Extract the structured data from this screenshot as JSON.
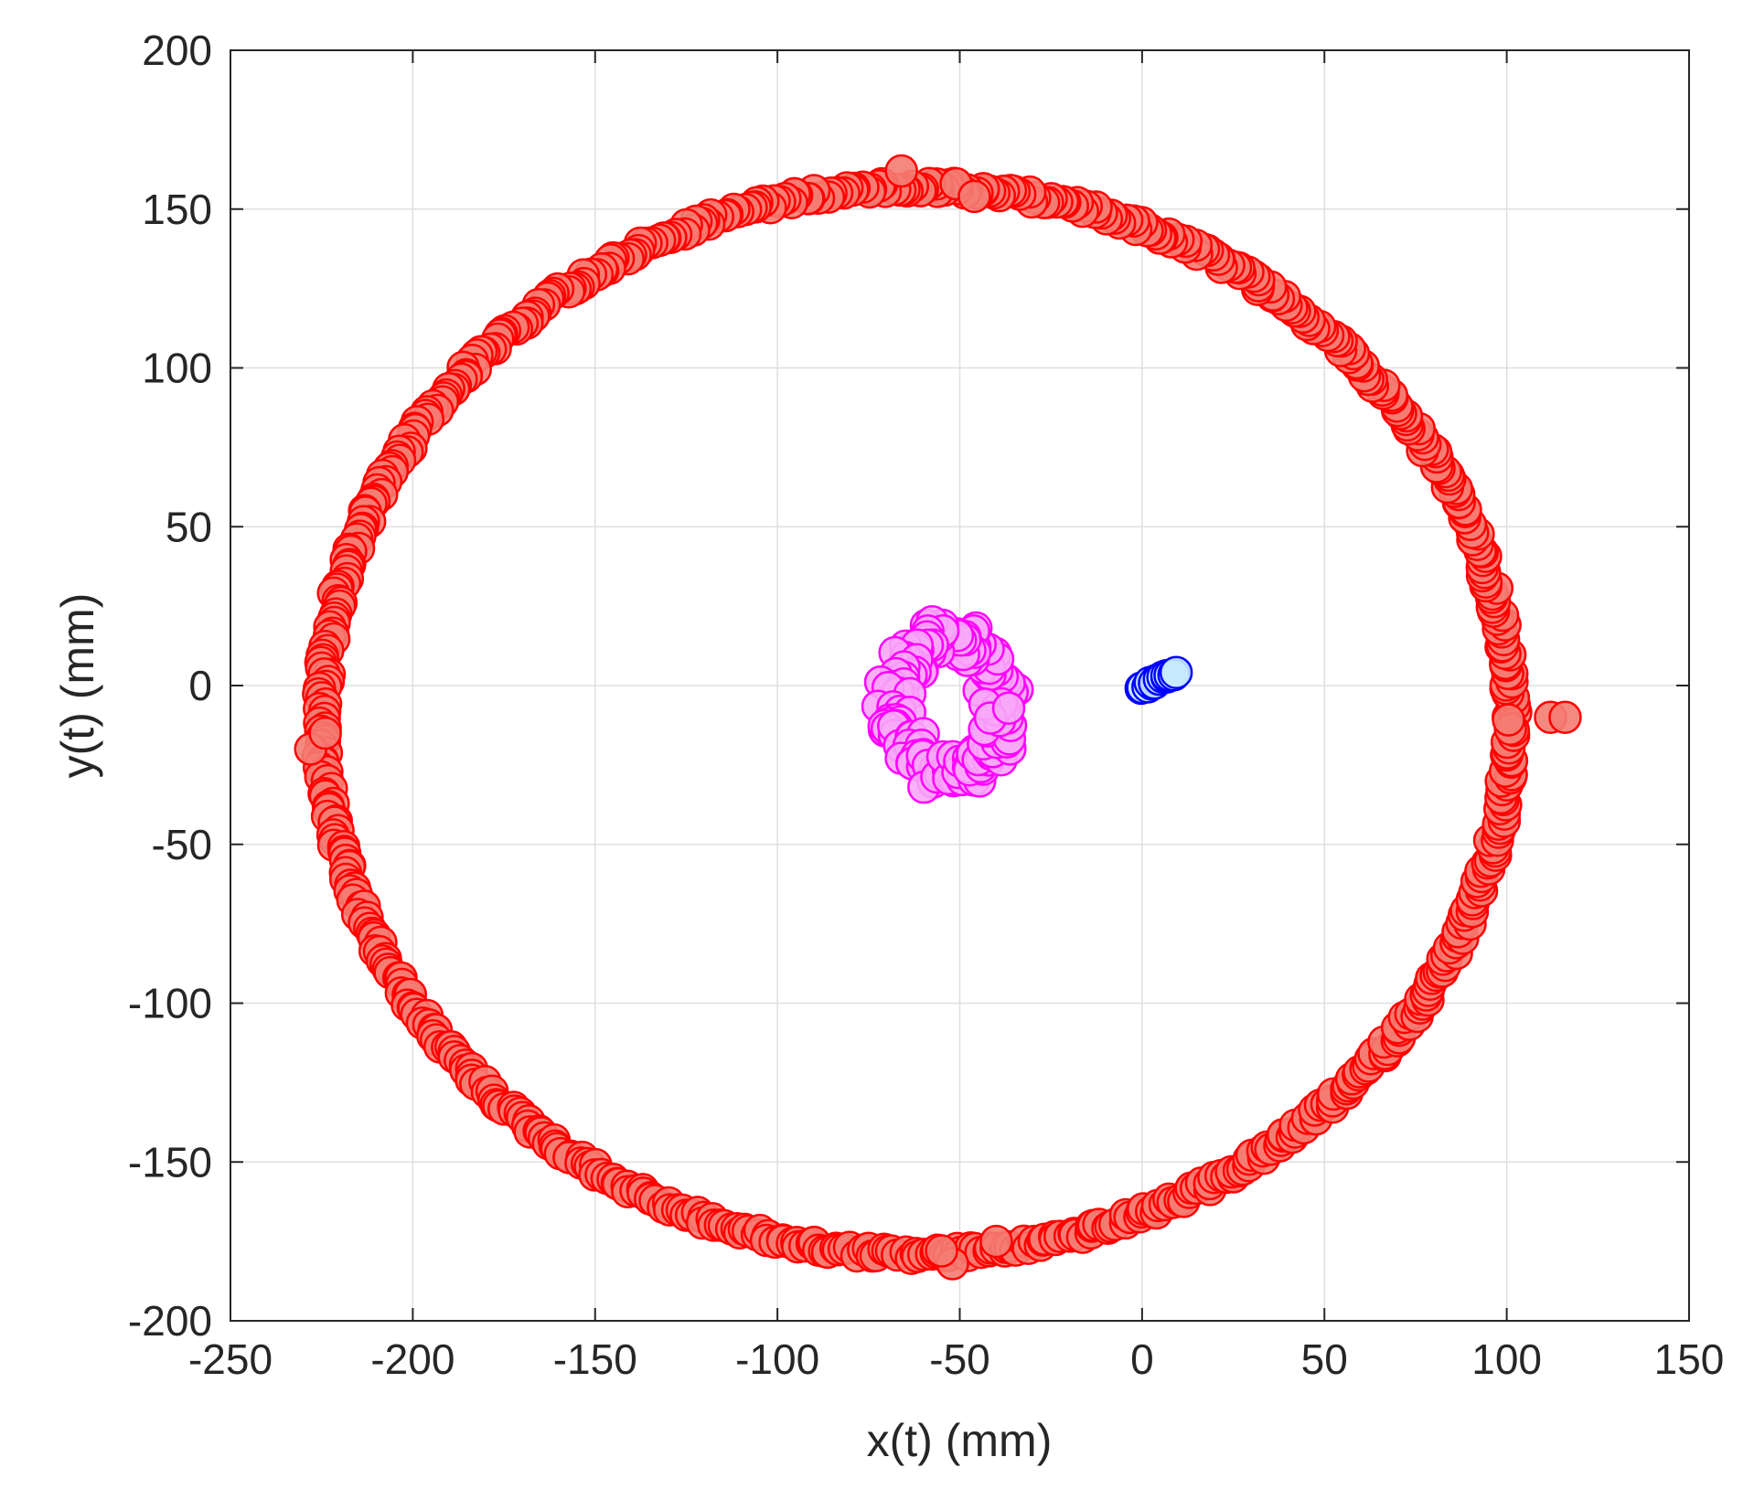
{
  "chart_data": {
    "type": "scatter",
    "title": "",
    "xlabel": "x(t) (mm)",
    "ylabel": "y(t) (mm)",
    "xlim": [
      -250,
      150
    ],
    "ylim": [
      -200,
      200
    ],
    "xticks": [
      -250,
      -200,
      -150,
      -100,
      -50,
      0,
      50,
      100,
      150
    ],
    "yticks": [
      -200,
      -150,
      -100,
      -50,
      0,
      50,
      100,
      150,
      200
    ],
    "xtick_labels": [
      "-250",
      "-200",
      "-150",
      "-100",
      "-50",
      "0",
      "50",
      "100",
      "150"
    ],
    "ytick_labels": [
      "-200",
      "-150",
      "-100",
      "-50",
      "0",
      "50",
      "100",
      "150",
      "200"
    ],
    "grid": true,
    "legend": "none",
    "series": [
      {
        "pattern": "ring",
        "edge_color": "#ff0000",
        "fill_color": "#f47c72",
        "center": [
          -62,
          -11
        ],
        "radii": [
          163,
          168
        ],
        "count": 720,
        "spikes": [
          {
            "x": -66,
            "y": 162
          },
          {
            "x": -51,
            "y": 158
          },
          {
            "x": -46,
            "y": 154
          },
          {
            "x": 112,
            "y": -10
          },
          {
            "x": 116,
            "y": -10
          },
          {
            "x": -228,
            "y": -20
          },
          {
            "x": -224,
            "y": -15
          },
          {
            "x": -52,
            "y": -182
          },
          {
            "x": -55,
            "y": -178
          },
          {
            "x": -40,
            "y": -175
          }
        ]
      },
      {
        "pattern": "loop",
        "edge_color": "#ff00ff",
        "fill_color": "#f7a9f7",
        "center": [
          -53,
          -6
        ],
        "radii": [
          15,
          22
        ],
        "count": 170
      },
      {
        "pattern": "segment",
        "edge_color": "#0000ff",
        "fill_color": "#c7eaff",
        "from": [
          0,
          -1
        ],
        "to": [
          9,
          4
        ],
        "count": 14
      }
    ]
  }
}
